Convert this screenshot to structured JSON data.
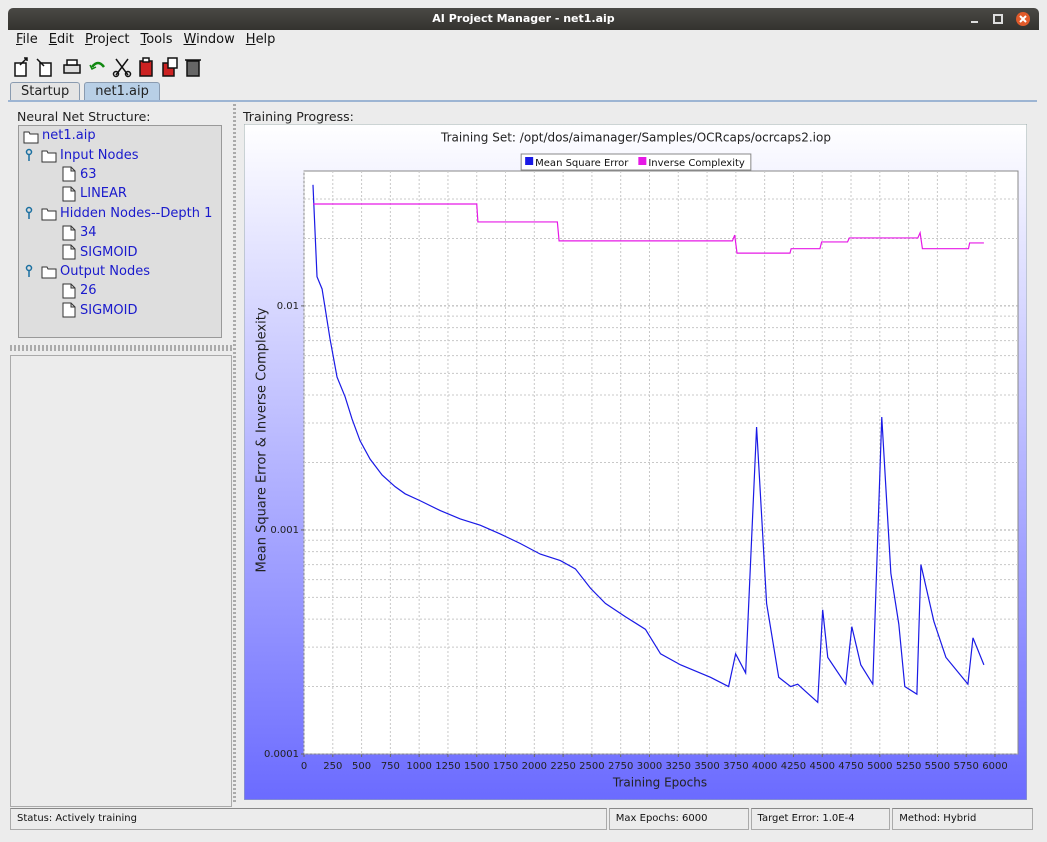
{
  "window": {
    "title": "AI Project Manager - net1.aip"
  },
  "menu": [
    "File",
    "Edit",
    "Project",
    "Tools",
    "Window",
    "Help"
  ],
  "tabs": [
    "Startup",
    "net1.aip"
  ],
  "left_panel": {
    "label": "Neural Net Structure:",
    "tree": {
      "label": "net1.aip",
      "children": [
        {
          "label": "Input Nodes",
          "children": [
            {
              "label": "63"
            },
            {
              "label": "LINEAR"
            }
          ]
        },
        {
          "label": "Hidden Nodes--Depth 1",
          "children": [
            {
              "label": "34"
            },
            {
              "label": "SIGMOID"
            }
          ]
        },
        {
          "label": "Output Nodes",
          "children": [
            {
              "label": "26"
            },
            {
              "label": "SIGMOID"
            }
          ]
        }
      ]
    }
  },
  "right_panel": {
    "label": "Training Progress:"
  },
  "chart_data": {
    "type": "line",
    "title": "Training Set: /opt/dos/aimanager/Samples/OCRcaps/ocrcaps2.iop",
    "xlabel": "Training Epochs",
    "ylabel": "Mean Square Error & Inverse Complexity",
    "xlim": [
      0,
      6200
    ],
    "ylim": [
      0.0001,
      0.04
    ],
    "log_y": true,
    "grid": true,
    "xticks": [
      0,
      250,
      500,
      750,
      1000,
      1250,
      1500,
      1750,
      2000,
      2250,
      2500,
      2750,
      3000,
      3250,
      3500,
      3750,
      4000,
      4250,
      4500,
      4750,
      5000,
      5250,
      5500,
      5750,
      6000
    ],
    "yticks": [
      0.0001,
      0.001,
      0.01
    ],
    "series": [
      {
        "name": "Mean Square Error",
        "color": "#1a1ae6",
        "x": [
          78,
          113,
          157,
          226,
          287,
          357,
          417,
          487,
          574,
          678,
          791,
          878,
          1009,
          1183,
          1357,
          1530,
          1704,
          1878,
          2052,
          2226,
          2357,
          2487,
          2617,
          2791,
          2965,
          3096,
          3270,
          3530,
          3687,
          3748,
          3835,
          3930,
          4017,
          4122,
          4226,
          4287,
          4357,
          4461,
          4504,
          4548,
          4704,
          4757,
          4835,
          4939,
          5017,
          5096,
          5165,
          5217,
          5322,
          5357,
          5470,
          5574,
          5765,
          5809,
          5904
        ],
        "values": [
          0.0347,
          0.0135,
          0.0119,
          0.00712,
          0.00481,
          0.00393,
          0.00313,
          0.0025,
          0.00207,
          0.00176,
          0.00156,
          0.00145,
          0.00135,
          0.00122,
          0.00112,
          0.00105,
          0.00096,
          0.00087,
          0.00078,
          0.00073,
          0.00067,
          0.00055,
          0.00047,
          0.00041,
          0.00036,
          0.00028,
          0.00025,
          0.00022,
          0.0002,
          0.00028,
          0.00023,
          0.00288,
          0.00047,
          0.00022,
          0.0002,
          0.000205,
          0.00019,
          0.00017,
          0.00044,
          0.00027,
          0.000205,
          0.00037,
          0.00025,
          0.000205,
          0.00319,
          0.00064,
          0.00038,
          0.0002,
          0.000185,
          0.0007,
          0.00039,
          0.00027,
          0.000205,
          0.00033,
          0.00025
        ]
      },
      {
        "name": "Inverse Complexity",
        "color": "#e619e6",
        "x": [
          78,
          1500,
          1510,
          2200,
          2215,
          3720,
          3740,
          3760,
          4220,
          4230,
          4480,
          4495,
          4720,
          4735,
          5330,
          5350,
          5370,
          5770,
          5780,
          5904
        ],
        "values": [
          0.0285,
          0.0285,
          0.0237,
          0.0237,
          0.0195,
          0.0195,
          0.0207,
          0.0172,
          0.0172,
          0.018,
          0.018,
          0.0193,
          0.0193,
          0.0201,
          0.0201,
          0.0212,
          0.018,
          0.018,
          0.0191,
          0.0191
        ]
      }
    ]
  },
  "status_bar": [
    "Status:  Actively training",
    "Max Epochs:  6000",
    "Target Error:  1.0E-4",
    "Method:  Hybrid"
  ]
}
